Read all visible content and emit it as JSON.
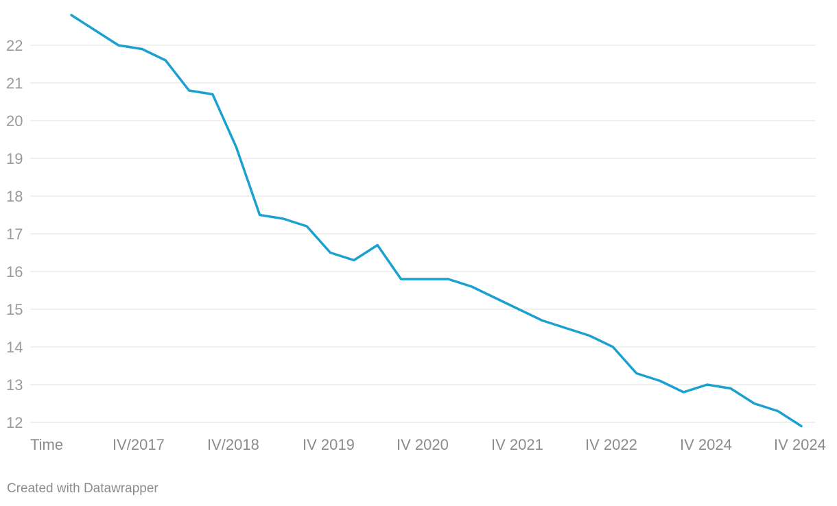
{
  "colors": {
    "line": "#1ba1cf",
    "grid": "#e0e0e0",
    "tick_text": "#9a9a9a"
  },
  "footer": {
    "credit": "Created with Datawrapper"
  },
  "chart_data": {
    "type": "line",
    "title": "",
    "xlabel": "",
    "ylabel": "",
    "ylim": [
      12,
      23
    ],
    "grid": true,
    "y_ticks": [
      12,
      13,
      14,
      15,
      16,
      17,
      18,
      19,
      20,
      21,
      22
    ],
    "x_tick_labels": [
      "Time",
      "IV/2017",
      "IV/2018",
      "IV 2019",
      "IV 2020",
      "IV 2021",
      "IV 2022",
      "IV 2024",
      "IV 2024"
    ],
    "series": [
      {
        "values": [
          22.8,
          22.4,
          22.0,
          21.9,
          21.6,
          20.8,
          20.7,
          19.3,
          17.5,
          17.4,
          17.2,
          16.5,
          16.3,
          16.7,
          15.8,
          15.8,
          15.8,
          15.6,
          15.3,
          15.0,
          14.7,
          14.5,
          14.3,
          14.0,
          13.3,
          13.1,
          12.8,
          13.0,
          12.9,
          12.5,
          12.3,
          11.9
        ]
      }
    ]
  }
}
